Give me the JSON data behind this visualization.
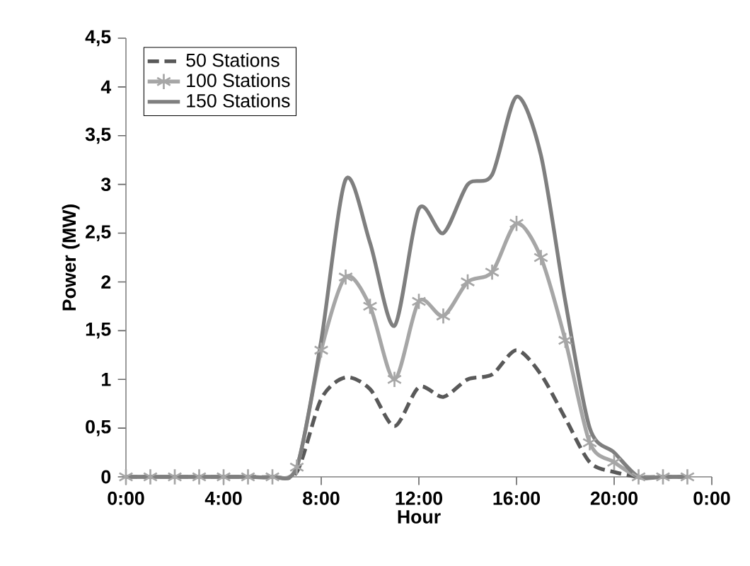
{
  "chart_data": {
    "type": "line",
    "xlabel": "Hour",
    "ylabel": "Power (MW)",
    "x": [
      0,
      1,
      2,
      3,
      4,
      5,
      6,
      7,
      8,
      9,
      10,
      11,
      12,
      13,
      14,
      15,
      16,
      17,
      18,
      19,
      20,
      21,
      22,
      23
    ],
    "series": [
      {
        "name": "50 Stations",
        "color": "#595959",
        "line_style": "dashed",
        "marker": "none",
        "values": [
          0,
          0,
          0,
          0,
          0,
          0,
          0,
          0.05,
          0.8,
          1.02,
          0.9,
          0.52,
          0.92,
          0.82,
          1.0,
          1.05,
          1.3,
          1.05,
          0.6,
          0.15,
          0.05,
          0,
          0,
          0
        ]
      },
      {
        "name": "100 Stations",
        "color": "#a6a6a6",
        "line_style": "solid",
        "marker": "cross",
        "values": [
          0,
          0,
          0,
          0,
          0,
          0,
          0,
          0.1,
          1.3,
          2.05,
          1.75,
          1.0,
          1.8,
          1.65,
          2.0,
          2.1,
          2.6,
          2.25,
          1.4,
          0.35,
          0.15,
          0,
          0,
          0
        ]
      },
      {
        "name": "150 Stations",
        "color": "#7f7f7f",
        "line_style": "solid",
        "marker": "none",
        "values": [
          0,
          0,
          0,
          0,
          0,
          0,
          0,
          0.1,
          1.4,
          3.05,
          2.4,
          1.55,
          2.75,
          2.5,
          3.0,
          3.1,
          3.9,
          3.3,
          1.8,
          0.5,
          0.25,
          0,
          0,
          0
        ]
      }
    ],
    "xlim": [
      0,
      24
    ],
    "xticks": [
      {
        "value": 0,
        "label": "0:00"
      },
      {
        "value": 4,
        "label": "4:00"
      },
      {
        "value": 8,
        "label": "8:00"
      },
      {
        "value": 12,
        "label": "12:00"
      },
      {
        "value": 16,
        "label": "16:00"
      },
      {
        "value": 20,
        "label": "20:00"
      },
      {
        "value": 24,
        "label": "0:00"
      }
    ],
    "ylim": [
      0,
      4.5
    ],
    "yticks": [
      0,
      {
        "value": 0.5,
        "label": "0,5"
      },
      1,
      {
        "value": 1.5,
        "label": "1,5"
      },
      2,
      {
        "value": 2.5,
        "label": "2,5"
      },
      3,
      {
        "value": 3.5,
        "label": "3,5"
      },
      4,
      {
        "value": 4.5,
        "label": "4,5"
      }
    ],
    "grid": false,
    "legend": "top left"
  }
}
